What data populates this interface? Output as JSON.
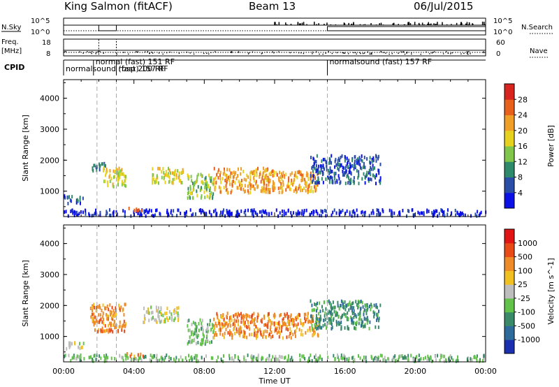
{
  "header": {
    "station": "King Salmon (fitACF)",
    "beam": "Beam 13",
    "date": "06/Jul/2015"
  },
  "strip": {
    "nsky_label": "N.Sky",
    "nsky_ticks": [
      "10^5",
      "10^0"
    ],
    "nsearch_label": "N.Search",
    "nsearch_ticks": [
      "10^5",
      "10^0"
    ],
    "freq_label": "Freq.",
    "freq_unit": "[MHz]",
    "freq_ticks": [
      "18",
      "8"
    ],
    "nave_label": "Nave",
    "nave_ticks": [
      "60",
      "0"
    ],
    "cpid_label": "CPID",
    "cpid_segments": [
      {
        "label": "normalsound (fast) 157 RF",
        "start_h": 0.0,
        "end_h": 15.0
      },
      {
        "label": "normal (fast) 151 RF",
        "start_h": 1.7,
        "end_h": 3.0
      },
      {
        "label": "rbsp 200 RF",
        "start_h": 3.0,
        "end_h": 15.0
      },
      {
        "label": "normalsound (fast) 157 RF",
        "start_h": 15.0,
        "end_h": 24.0
      }
    ]
  },
  "chart_data": [
    {
      "type": "heatmap",
      "name": "Power",
      "ylabel": "Slant Range [km]",
      "xlabel": "",
      "ylim": [
        180,
        4600
      ],
      "xlim": [
        0,
        24
      ],
      "yticks": [
        "1000",
        "2000",
        "3000",
        "4000"
      ],
      "colorbar_label": "Power [dB]",
      "colorbar_ticks": [
        "28",
        "24",
        "20",
        "16",
        "12",
        "8",
        "4"
      ],
      "colorbar_colors": [
        "#0a10e6",
        "#2a4ea8",
        "#2e8a6a",
        "#7fc64a",
        "#e6d21e",
        "#ef9e28",
        "#e8611c",
        "#d8241e"
      ],
      "scatter_regions": [
        {
          "x": [
            0.0,
            1.1
          ],
          "y": [
            650,
            900
          ],
          "level": 1
        },
        {
          "x": [
            1.5,
            2.4
          ],
          "y": [
            1700,
            2000
          ],
          "level": 2
        },
        {
          "x": [
            2.2,
            3.5
          ],
          "y": [
            1200,
            1800
          ],
          "level": 4
        },
        {
          "x": [
            5.0,
            6.8
          ],
          "y": [
            1300,
            1800
          ],
          "level": 4
        },
        {
          "x": [
            7.0,
            8.5
          ],
          "y": [
            800,
            1600
          ],
          "level": 3
        },
        {
          "x": [
            8.5,
            12.0
          ],
          "y": [
            1000,
            1800
          ],
          "level": 5
        },
        {
          "x": [
            12.0,
            14.5
          ],
          "y": [
            1000,
            1700
          ],
          "level": 5
        },
        {
          "x": [
            14.0,
            18.0
          ],
          "y": [
            1300,
            2200
          ],
          "level": 1
        },
        {
          "x": [
            0.0,
            24.0
          ],
          "y": [
            250,
            450
          ],
          "level": 0
        },
        {
          "x": [
            3.5,
            4.5
          ],
          "y": [
            400,
            500
          ],
          "level": 6
        }
      ]
    },
    {
      "type": "heatmap",
      "name": "Velocity",
      "ylabel": "Slant Range [km]",
      "xlabel": "Time UT",
      "ylim": [
        180,
        4600
      ],
      "xlim": [
        0,
        24
      ],
      "yticks": [
        "1000",
        "2000",
        "3000",
        "4000"
      ],
      "xticks": [
        "00:00",
        "04:00",
        "08:00",
        "12:00",
        "16:00",
        "20:00",
        "00:00"
      ],
      "colorbar_label": "Velocity [m s^-1]",
      "colorbar_ticks": [
        "1000",
        "500",
        "100",
        "25",
        "-25",
        "-100",
        "-500",
        "-1000"
      ],
      "colorbar_colors": [
        "#1a30b0",
        "#2e6a9a",
        "#3a8a6a",
        "#62c24a",
        "#bdbdbd",
        "#f0c020",
        "#ef8a28",
        "#e84a18",
        "#e01414"
      ],
      "scatter_regions": [
        {
          "x": [
            0.0,
            1.1
          ],
          "y": [
            650,
            850
          ],
          "level": 4
        },
        {
          "x": [
            1.5,
            3.5
          ],
          "y": [
            1200,
            2100
          ],
          "level": 6
        },
        {
          "x": [
            4.5,
            6.5
          ],
          "y": [
            1500,
            2000
          ],
          "level": 4
        },
        {
          "x": [
            7.0,
            8.5
          ],
          "y": [
            800,
            1600
          ],
          "level": 3
        },
        {
          "x": [
            8.5,
            14.5
          ],
          "y": [
            1000,
            1800
          ],
          "level": 6
        },
        {
          "x": [
            14.0,
            18.0
          ],
          "y": [
            1300,
            2200
          ],
          "level": 2
        },
        {
          "x": [
            0.0,
            24.0
          ],
          "y": [
            250,
            450
          ],
          "level": 3
        },
        {
          "x": [
            3.5,
            4.5
          ],
          "y": [
            400,
            500
          ],
          "level": 6
        }
      ]
    }
  ]
}
